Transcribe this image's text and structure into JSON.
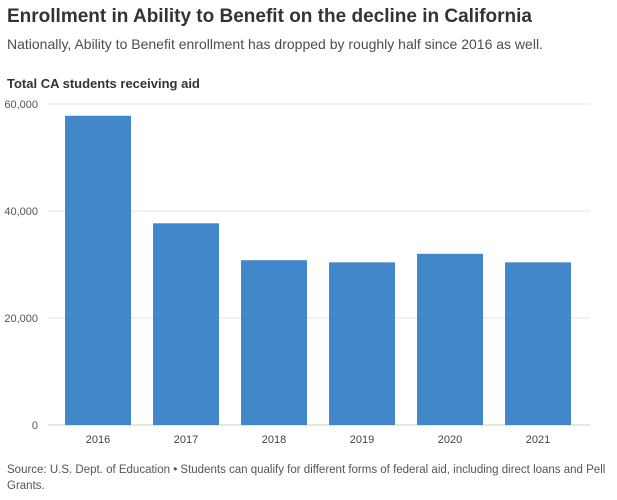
{
  "header": {
    "title": "Enrollment in Ability to Benefit on the decline in California",
    "subtitle": "Nationally, Ability to Benefit enrollment has dropped by roughly half since 2016 as well."
  },
  "footer": {
    "source": "Source: U.S. Dept. of Education • Students can qualify for different forms of federal aid, including direct loans and Pell Grants."
  },
  "chart_data": {
    "type": "bar",
    "title": "Enrollment in Ability to Benefit on the decline in California",
    "subtitle": "Nationally, Ability to Benefit enrollment has dropped by roughly half since 2016 as well.",
    "ylabel": "Total CA students receiving aid",
    "xlabel": "",
    "categories": [
      "2016",
      "2017",
      "2018",
      "2019",
      "2020",
      "2021"
    ],
    "values": [
      57800,
      37700,
      30800,
      30400,
      32000,
      30400
    ],
    "ylim": [
      0,
      60000
    ],
    "yticks": [
      0,
      20000,
      40000,
      60000
    ],
    "ytick_labels": [
      "0",
      "20,000",
      "40,000",
      "60,000"
    ],
    "grid": true,
    "legend": "none",
    "bar_color": "#4187c9",
    "grid_color": "#e6e6e6"
  }
}
